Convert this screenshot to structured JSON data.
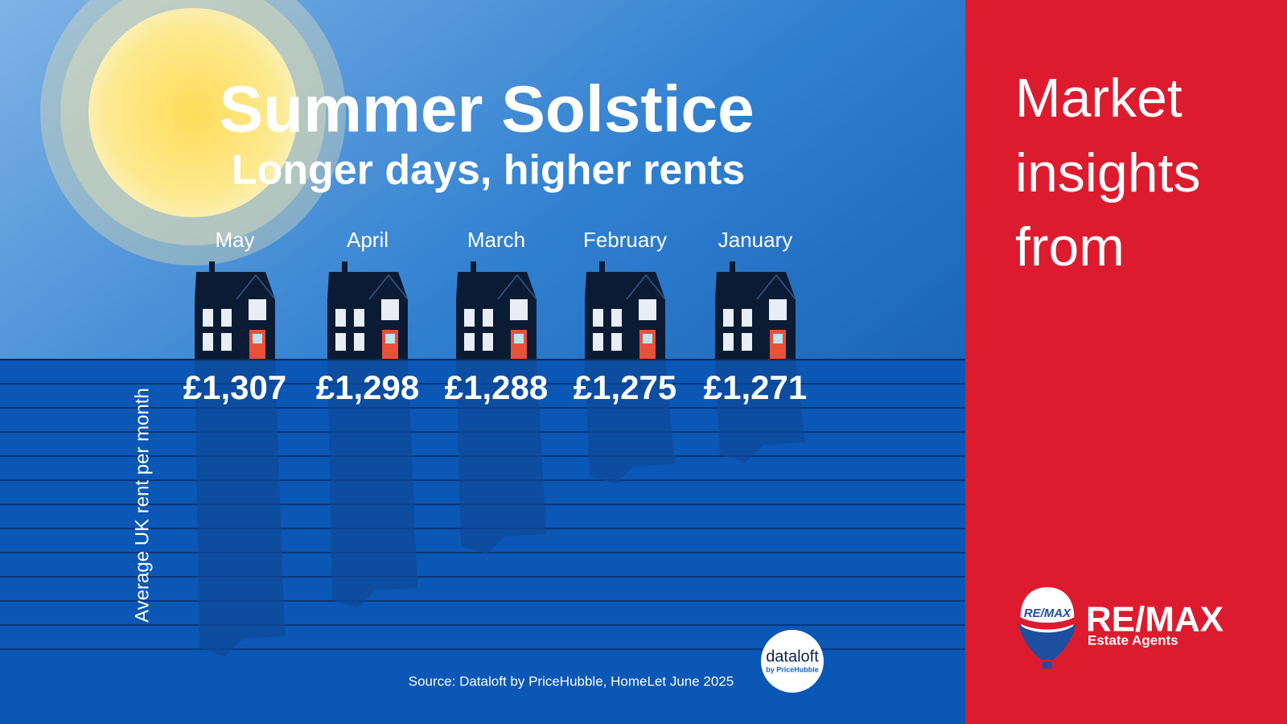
{
  "chart_data": {
    "type": "bar",
    "title": "Summer Solstice",
    "subtitle": "Longer days, higher rents",
    "y_label": "Average UK rent per month",
    "categories": [
      "May",
      "April",
      "March",
      "February",
      "January"
    ],
    "values": [
      1307,
      1298,
      1288,
      1275,
      1271
    ],
    "value_labels": [
      "£1,307",
      "£1,298",
      "£1,288",
      "£1,275",
      "£1,271"
    ],
    "color": "#0d4a9a",
    "source": "Source: Dataloft by PriceHubble, HomeLet June 2025"
  },
  "sidebar": {
    "lines": [
      "Market",
      "insights",
      "from"
    ]
  },
  "logo": {
    "brand": "RE/MAX",
    "tagline": "Estate Agents",
    "balloon_text": "RE/MAX"
  },
  "badge": {
    "name": "dataloft",
    "by": "by PriceHubble"
  }
}
